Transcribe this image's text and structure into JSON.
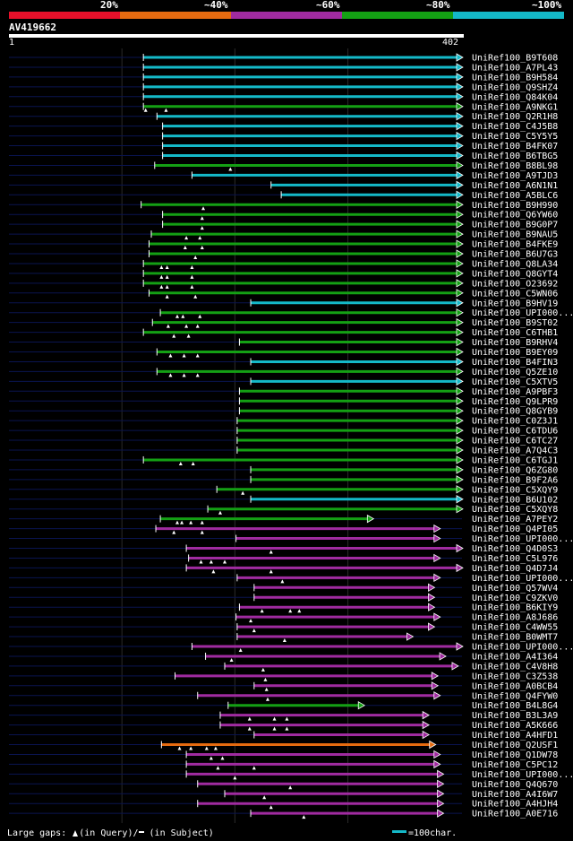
{
  "legend": {
    "items": [
      {
        "label": "20%",
        "color": "#e8102a"
      },
      {
        "label": "~40%",
        "color": "#e66b10"
      },
      {
        "label": "~60%",
        "color": "#a02ba0"
      },
      {
        "label": "~80%",
        "color": "#14a014"
      },
      {
        "label": "~100%",
        "color": "#14b9c8"
      }
    ]
  },
  "query": {
    "name": "AV419662",
    "start": "1",
    "end": "402"
  },
  "colors": {
    "cyan": "#14b9c8",
    "green": "#14a014",
    "magenta": "#a02ba0",
    "orange": "#e66b10",
    "navy": "#0a1450",
    "grid": "#2a2a2a"
  },
  "footer": {
    "prefix": "Large gaps:",
    "in_query": "(in Query)/",
    "in_subject": "(in Subject)",
    "scale": "=100char."
  },
  "hits": [
    {
      "name": "UniRef100_B9T608",
      "start": 120,
      "end": 402,
      "color": "cyan",
      "gaps": []
    },
    {
      "name": "UniRef100_A7PL43",
      "start": 120,
      "end": 402,
      "color": "cyan",
      "gaps": []
    },
    {
      "name": "UniRef100_B9H584",
      "start": 120,
      "end": 402,
      "color": "cyan",
      "gaps": []
    },
    {
      "name": "UniRef100_Q9SHZ4",
      "start": 120,
      "end": 402,
      "color": "cyan",
      "gaps": []
    },
    {
      "name": "UniRef100_Q84K04",
      "start": 120,
      "end": 402,
      "color": "cyan",
      "gaps": []
    },
    {
      "name": "UniRef100_A9NKG1",
      "start": 120,
      "end": 402,
      "color": "green",
      "gaps": [
        122,
        140
      ]
    },
    {
      "name": "UniRef100_Q2R1H8",
      "start": 132,
      "end": 402,
      "color": "cyan",
      "gaps": []
    },
    {
      "name": "UniRef100_C4J5B8",
      "start": 137,
      "end": 402,
      "color": "cyan",
      "gaps": []
    },
    {
      "name": "UniRef100_C5Y5Y5",
      "start": 137,
      "end": 402,
      "color": "cyan",
      "gaps": []
    },
    {
      "name": "UniRef100_B4FK07",
      "start": 137,
      "end": 402,
      "color": "cyan",
      "gaps": []
    },
    {
      "name": "UniRef100_B6TBG5",
      "start": 137,
      "end": 402,
      "color": "cyan",
      "gaps": []
    },
    {
      "name": "UniRef100_B8BL98",
      "start": 130,
      "end": 402,
      "color": "green",
      "gaps": [
        197
      ]
    },
    {
      "name": "UniRef100_A9TJD3",
      "start": 163,
      "end": 402,
      "color": "cyan",
      "gaps": []
    },
    {
      "name": "UniRef100_A6N1N1",
      "start": 233,
      "end": 402,
      "color": "cyan",
      "gaps": []
    },
    {
      "name": "UniRef100_A5BLC6",
      "start": 242,
      "end": 402,
      "color": "cyan",
      "gaps": []
    },
    {
      "name": "UniRef100_B9H990",
      "start": 118,
      "end": 402,
      "color": "green",
      "gaps": [
        173
      ]
    },
    {
      "name": "UniRef100_Q6YW60",
      "start": 137,
      "end": 402,
      "color": "green",
      "gaps": [
        172
      ]
    },
    {
      "name": "UniRef100_B9G0P7",
      "start": 137,
      "end": 402,
      "color": "green",
      "gaps": [
        172
      ]
    },
    {
      "name": "UniRef100_B9NAU5",
      "start": 127,
      "end": 402,
      "color": "green",
      "gaps": [
        158,
        170
      ]
    },
    {
      "name": "UniRef100_B4FKE9",
      "start": 125,
      "end": 402,
      "color": "green",
      "gaps": [
        157,
        172
      ]
    },
    {
      "name": "UniRef100_B6U7G3",
      "start": 125,
      "end": 402,
      "color": "green",
      "gaps": [
        166
      ]
    },
    {
      "name": "UniRef100_Q8LA34",
      "start": 120,
      "end": 402,
      "color": "green",
      "gaps": [
        136,
        141,
        163
      ]
    },
    {
      "name": "UniRef100_Q8GYT4",
      "start": 120,
      "end": 402,
      "color": "green",
      "gaps": [
        136,
        141,
        163
      ]
    },
    {
      "name": "UniRef100_O23692",
      "start": 120,
      "end": 402,
      "color": "green",
      "gaps": [
        136,
        141,
        163
      ]
    },
    {
      "name": "UniRef100_C5WN06",
      "start": 125,
      "end": 402,
      "color": "green",
      "gaps": [
        141,
        166
      ]
    },
    {
      "name": "UniRef100_B9HV19",
      "start": 215,
      "end": 402,
      "color": "cyan",
      "gaps": []
    },
    {
      "name": "UniRef100_UPI000...",
      "start": 135,
      "end": 402,
      "color": "green",
      "gaps": [
        150,
        155,
        170
      ]
    },
    {
      "name": "UniRef100_B9ST02",
      "start": 128,
      "end": 402,
      "color": "green",
      "gaps": [
        142,
        158,
        168
      ]
    },
    {
      "name": "UniRef100_C6THB1",
      "start": 120,
      "end": 402,
      "color": "green",
      "gaps": [
        147,
        160
      ]
    },
    {
      "name": "UniRef100_B9RHV4",
      "start": 205,
      "end": 402,
      "color": "green",
      "gaps": []
    },
    {
      "name": "UniRef100_B9EY09",
      "start": 132,
      "end": 402,
      "color": "green",
      "gaps": [
        144,
        156,
        168
      ]
    },
    {
      "name": "UniRef100_B4FIN3",
      "start": 215,
      "end": 402,
      "color": "cyan",
      "gaps": []
    },
    {
      "name": "UniRef100_Q5ZE10",
      "start": 132,
      "end": 402,
      "color": "green",
      "gaps": [
        144,
        156,
        168
      ]
    },
    {
      "name": "UniRef100_C5XTV5",
      "start": 215,
      "end": 402,
      "color": "cyan",
      "gaps": []
    },
    {
      "name": "UniRef100_A9PBF3",
      "start": 205,
      "end": 402,
      "color": "green",
      "gaps": []
    },
    {
      "name": "UniRef100_Q9LPR9",
      "start": 205,
      "end": 402,
      "color": "green",
      "gaps": []
    },
    {
      "name": "UniRef100_Q8GYB9",
      "start": 205,
      "end": 402,
      "color": "green",
      "gaps": []
    },
    {
      "name": "UniRef100_C0Z3J1",
      "start": 203,
      "end": 402,
      "color": "green",
      "gaps": []
    },
    {
      "name": "UniRef100_C6TDU6",
      "start": 203,
      "end": 402,
      "color": "green",
      "gaps": []
    },
    {
      "name": "UniRef100_C6TC27",
      "start": 203,
      "end": 402,
      "color": "green",
      "gaps": []
    },
    {
      "name": "UniRef100_A7Q4C3",
      "start": 203,
      "end": 402,
      "color": "green",
      "gaps": []
    },
    {
      "name": "UniRef100_C6TGJ1",
      "start": 120,
      "end": 402,
      "color": "green",
      "gaps": [
        153,
        164
      ]
    },
    {
      "name": "UniRef100_Q6ZG80",
      "start": 215,
      "end": 402,
      "color": "green",
      "gaps": []
    },
    {
      "name": "UniRef100_B9F2A6",
      "start": 215,
      "end": 402,
      "color": "green",
      "gaps": []
    },
    {
      "name": "UniRef100_C5XQY9",
      "start": 185,
      "end": 402,
      "color": "green",
      "gaps": [
        208
      ]
    },
    {
      "name": "UniRef100_B6U102",
      "start": 215,
      "end": 402,
      "color": "cyan",
      "gaps": []
    },
    {
      "name": "UniRef100_C5XQY8",
      "start": 177,
      "end": 402,
      "color": "green",
      "gaps": [
        188
      ]
    },
    {
      "name": "UniRef100_A7PEY2",
      "start": 135,
      "end": 323,
      "color": "green",
      "gaps": [
        150,
        154,
        162,
        172
      ]
    },
    {
      "name": "UniRef100_Q4PI05",
      "start": 131,
      "end": 382,
      "color": "magenta",
      "gaps": [
        147,
        172
      ]
    },
    {
      "name": "UniRef100_UPI000...",
      "start": 202,
      "end": 382,
      "color": "magenta",
      "gaps": []
    },
    {
      "name": "UniRef100_Q4D0S3",
      "start": 158,
      "end": 402,
      "color": "magenta",
      "gaps": [
        233
      ]
    },
    {
      "name": "UniRef100_C5L976",
      "start": 160,
      "end": 382,
      "color": "magenta",
      "gaps": [
        171,
        180,
        192
      ]
    },
    {
      "name": "UniRef100_Q4D7J4",
      "start": 158,
      "end": 402,
      "color": "magenta",
      "gaps": [
        182,
        233
      ]
    },
    {
      "name": "UniRef100_UPI000...",
      "start": 203,
      "end": 382,
      "color": "magenta",
      "gaps": [
        243
      ]
    },
    {
      "name": "UniRef100_Q57WV4",
      "start": 218,
      "end": 377,
      "color": "magenta",
      "gaps": []
    },
    {
      "name": "UniRef100_C9ZKV0",
      "start": 218,
      "end": 377,
      "color": "magenta",
      "gaps": []
    },
    {
      "name": "UniRef100_B6KIY9",
      "start": 205,
      "end": 377,
      "color": "magenta",
      "gaps": [
        225,
        250,
        258
      ]
    },
    {
      "name": "UniRef100_A8J686",
      "start": 202,
      "end": 382,
      "color": "magenta",
      "gaps": [
        215
      ]
    },
    {
      "name": "UniRef100_C4WW55",
      "start": 203,
      "end": 377,
      "color": "magenta",
      "gaps": [
        218
      ]
    },
    {
      "name": "UniRef100_B0WMT7",
      "start": 203,
      "end": 358,
      "color": "magenta",
      "gaps": [
        245
      ]
    },
    {
      "name": "UniRef100_UPI000...",
      "start": 163,
      "end": 402,
      "color": "magenta",
      "gaps": [
        206
      ]
    },
    {
      "name": "UniRef100_A4I364",
      "start": 175,
      "end": 387,
      "color": "magenta",
      "gaps": [
        198
      ]
    },
    {
      "name": "UniRef100_C4V8H8",
      "start": 192,
      "end": 398,
      "color": "magenta",
      "gaps": [
        226
      ]
    },
    {
      "name": "UniRef100_C3Z538",
      "start": 148,
      "end": 380,
      "color": "magenta",
      "gaps": [
        228
      ]
    },
    {
      "name": "UniRef100_A0BCB4",
      "start": 218,
      "end": 380,
      "color": "magenta",
      "gaps": [
        229
      ]
    },
    {
      "name": "UniRef100_Q4FYW0",
      "start": 168,
      "end": 382,
      "color": "magenta",
      "gaps": [
        230
      ]
    },
    {
      "name": "UniRef100_B4L8G4",
      "start": 195,
      "end": 315,
      "color": "green",
      "gaps": []
    },
    {
      "name": "UniRef100_B3L3A9",
      "start": 188,
      "end": 372,
      "color": "magenta",
      "gaps": [
        214,
        236,
        247
      ]
    },
    {
      "name": "UniRef100_A5K666",
      "start": 188,
      "end": 372,
      "color": "magenta",
      "gaps": [
        214,
        236,
        247
      ]
    },
    {
      "name": "UniRef100_A4HFD1",
      "start": 218,
      "end": 372,
      "color": "magenta",
      "gaps": []
    },
    {
      "name": "UniRef100_Q2USF1",
      "start": 136,
      "end": 378,
      "color": "orange",
      "gaps": [
        152,
        162,
        176,
        184
      ]
    },
    {
      "name": "UniRef100_Q1DW78",
      "start": 158,
      "end": 382,
      "color": "magenta",
      "gaps": [
        180,
        190
      ]
    },
    {
      "name": "UniRef100_C5PC12",
      "start": 158,
      "end": 382,
      "color": "magenta",
      "gaps": [
        186,
        218
      ]
    },
    {
      "name": "UniRef100_UPI000...",
      "start": 158,
      "end": 385,
      "color": "magenta",
      "gaps": [
        201
      ]
    },
    {
      "name": "UniRef100_Q4Q670",
      "start": 168,
      "end": 385,
      "color": "magenta",
      "gaps": [
        250
      ]
    },
    {
      "name": "UniRef100_A4I6W7",
      "start": 192,
      "end": 385,
      "color": "magenta",
      "gaps": [
        227
      ]
    },
    {
      "name": "UniRef100_A4HJH4",
      "start": 168,
      "end": 385,
      "color": "magenta",
      "gaps": [
        233
      ]
    },
    {
      "name": "UniRef100_A0E716",
      "start": 215,
      "end": 385,
      "color": "magenta",
      "gaps": [
        262
      ]
    }
  ]
}
